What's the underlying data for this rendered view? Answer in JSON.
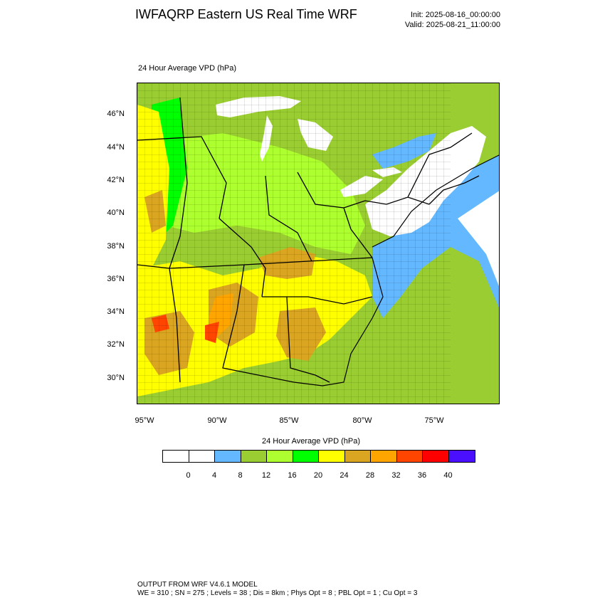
{
  "header": {
    "title": "IWFAQRP Eastern US Real Time WRF",
    "init": "Init: 2025-08-16_00:00:00",
    "valid": "Valid: 2025-08-21_11:00:00"
  },
  "map": {
    "subtitle": "24 Hour Average VPD   (hPa)",
    "lat_labels": [
      "46°N",
      "44°N",
      "42°N",
      "40°N",
      "38°N",
      "36°N",
      "34°N",
      "32°N",
      "30°N"
    ],
    "lon_labels": [
      "95°W",
      "90°W",
      "85°W",
      "80°W",
      "75°W"
    ]
  },
  "colorbar": {
    "title": "24 Hour Average VPD  (hPa)",
    "colors": [
      "#ffffff",
      "#ffffff",
      "#63b8ff",
      "#9acd32",
      "#adff2f",
      "#00ff00",
      "#ffff00",
      "#daa520",
      "#ffa500",
      "#ff4500",
      "#ff0000",
      "#4b0fff"
    ],
    "tick_labels": [
      "0",
      "4",
      "8",
      "12",
      "16",
      "20",
      "24",
      "28",
      "32",
      "36",
      "40"
    ]
  },
  "footer": {
    "line1": "OUTPUT FROM WRF V4.6.1 MODEL",
    "line2": "WE = 310 ; SN = 275 ; Levels = 38 ; Dis = 8km ; Phys Opt = 8 ; PBL Opt = 1 ; Cu Opt = 3"
  }
}
